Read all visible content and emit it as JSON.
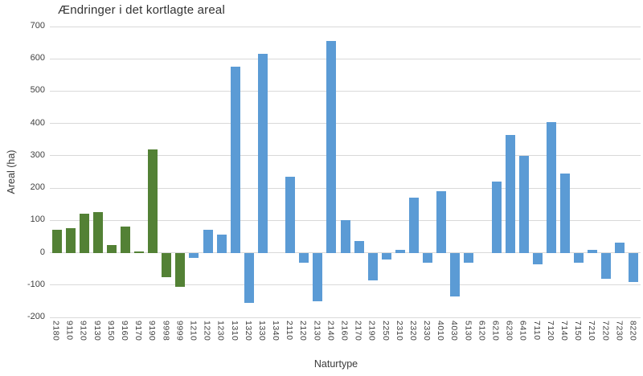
{
  "chart_data": {
    "type": "bar",
    "title": "Ændringer i det kortlagte areal",
    "xlabel": "Naturtype",
    "ylabel": "Areal (ha)",
    "ylim": [
      -200,
      700
    ],
    "yticks": [
      700,
      600,
      500,
      400,
      300,
      200,
      100,
      0,
      -100,
      -200
    ],
    "grid": true,
    "legend": "none",
    "categories": [
      "2180",
      "9110",
      "9120",
      "9130",
      "9150",
      "9160",
      "9170",
      "9190",
      "9998",
      "9999",
      "1210",
      "1220",
      "1230",
      "1310",
      "1320",
      "1330",
      "1340",
      "2110",
      "2120",
      "2130",
      "2140",
      "2160",
      "2170",
      "2190",
      "2250",
      "2310",
      "2320",
      "2330",
      "4010",
      "4030",
      "5130",
      "6120",
      "6210",
      "6230",
      "6410",
      "7110",
      "7120",
      "7140",
      "7150",
      "7210",
      "7220",
      "7230",
      "8220"
    ],
    "values": [
      70,
      75,
      120,
      125,
      25,
      80,
      5,
      320,
      -75,
      -105,
      -15,
      70,
      55,
      575,
      -155,
      615,
      0,
      235,
      -30,
      -150,
      655,
      100,
      35,
      -85,
      -20,
      8,
      170,
      -30,
      190,
      -135,
      -30,
      0,
      220,
      365,
      300,
      -35,
      405,
      245,
      -30,
      10,
      -80,
      30,
      -90
    ],
    "bar_colors": [
      "green",
      "green",
      "green",
      "green",
      "green",
      "green",
      "green",
      "green",
      "green",
      "green",
      "blue",
      "blue",
      "blue",
      "blue",
      "blue",
      "blue",
      "blue",
      "blue",
      "blue",
      "blue",
      "blue",
      "blue",
      "blue",
      "blue",
      "blue",
      "blue",
      "blue",
      "blue",
      "blue",
      "blue",
      "blue",
      "blue",
      "blue",
      "blue",
      "blue",
      "blue",
      "blue",
      "blue",
      "blue",
      "blue",
      "blue",
      "blue",
      "blue"
    ],
    "palette": {
      "green": "#538135",
      "blue": "#5B9BD5"
    },
    "gridline_color": "#d9d9d9"
  }
}
